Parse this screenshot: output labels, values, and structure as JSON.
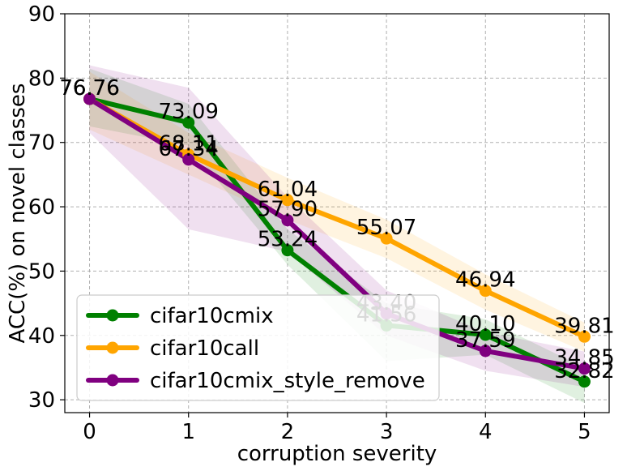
{
  "chart_data": {
    "type": "line",
    "title": "",
    "xlabel": "corruption severity",
    "ylabel": "ACC(%) on novel classes",
    "x": [
      0,
      1,
      2,
      3,
      4,
      5
    ],
    "xlim": [
      -0.25,
      5.25
    ],
    "ylim": [
      28,
      90
    ],
    "xticks": [
      0,
      1,
      2,
      3,
      4,
      5
    ],
    "yticks": [
      30,
      40,
      50,
      60,
      70,
      80,
      90
    ],
    "grid": true,
    "legend_position": "lower-left",
    "series": [
      {
        "name": "cifar10cmix",
        "color": "#008000",
        "values": [
          76.76,
          73.09,
          53.24,
          41.56,
          40.1,
          32.82
        ],
        "labels": [
          "76.76",
          "73.09",
          "53.24",
          "41.56",
          "40.10",
          "32.82"
        ],
        "band_low": [
          72.5,
          69.5,
          51.0,
          36.0,
          37.0,
          29.5
        ],
        "band_high": [
          81.5,
          76.0,
          56.5,
          45.0,
          42.5,
          35.0
        ]
      },
      {
        "name": "cifar10call",
        "color": "#FFA500",
        "values": [
          76.76,
          68.11,
          61.04,
          55.07,
          46.94,
          39.81
        ],
        "labels": [
          "76.76",
          "68.11",
          "61.04",
          "55.07",
          "46.94",
          "39.81"
        ],
        "band_low": [
          72.0,
          65.0,
          58.0,
          52.0,
          44.0,
          37.5
        ],
        "band_high": [
          81.0,
          71.5,
          64.5,
          58.0,
          49.5,
          42.0
        ]
      },
      {
        "name": "cifar10cmix_style_remove",
        "color": "#800080",
        "values": [
          76.76,
          67.34,
          57.9,
          43.4,
          37.59,
          34.85
        ],
        "labels": [
          "76.76",
          "67.34",
          "57.90",
          "43.40",
          "37.59",
          "34.85"
        ],
        "band_low": [
          71.5,
          56.5,
          53.0,
          40.0,
          34.5,
          32.0
        ],
        "band_high": [
          82.0,
          78.5,
          61.5,
          47.0,
          40.5,
          37.5
        ]
      }
    ]
  }
}
